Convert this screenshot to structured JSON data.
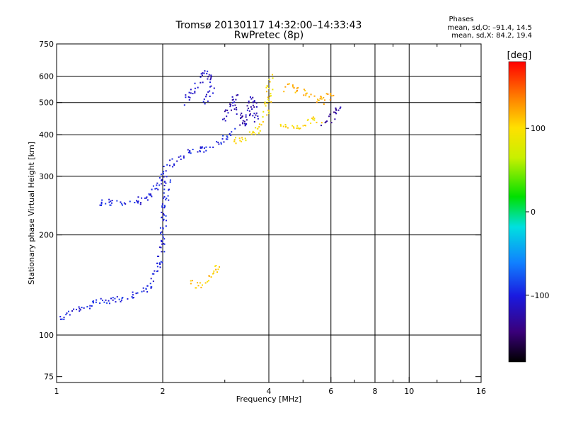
{
  "header": {
    "title_line1": "Tromsø 20130117 14:32:00–14:33:43",
    "title_line2": "RwPretec (8p)"
  },
  "stats": {
    "heading": "Phases",
    "line1": "mean, sd,O: –91.4, 14.5",
    "line2": "mean, sd,X:  84.2, 19.4"
  },
  "colorbar": {
    "unit_label": "[deg]",
    "ticks": [
      {
        "label": "100",
        "value": 100
      },
      {
        "label": "0",
        "value": 0
      },
      {
        "label": "–100",
        "value": -100
      }
    ],
    "range": [
      -180,
      180
    ]
  },
  "chart_data": {
    "type": "scatter",
    "xlabel": "Frequency [MHz]",
    "ylabel": "Stationary phase Virtual Height [km]",
    "x_scale": "log",
    "y_scale": "log",
    "xlim": [
      1,
      16
    ],
    "ylim": [
      72,
      750
    ],
    "x_ticks": [
      {
        "label": "1",
        "value": 1
      },
      {
        "label": "2",
        "value": 2
      },
      {
        "label": "4",
        "value": 4
      },
      {
        "label": "6",
        "value": 6
      },
      {
        "label": "8",
        "value": 8
      },
      {
        "label": "10",
        "value": 10
      },
      {
        "label": "16",
        "value": 16
      }
    ],
    "x_grid": [
      2,
      4,
      6,
      8,
      10
    ],
    "y_ticks": [
      {
        "label": "75",
        "value": 75
      },
      {
        "label": "100",
        "value": 100
      },
      {
        "label": "200",
        "value": 200
      },
      {
        "label": "300",
        "value": 300
      },
      {
        "label": "400",
        "value": 400
      },
      {
        "label": "500",
        "value": 500
      },
      {
        "label": "600",
        "value": 600
      },
      {
        "label": "750",
        "value": 750
      }
    ],
    "y_grid": [
      100,
      200,
      300,
      400,
      500,
      600
    ],
    "grid": true,
    "traces": [
      {
        "phase": -100,
        "points": [
          [
            1.02,
            112
          ],
          [
            1.1,
            118
          ],
          [
            1.2,
            122
          ],
          [
            1.3,
            125
          ],
          [
            1.4,
            127
          ],
          [
            1.5,
            128
          ],
          [
            1.6,
            130
          ],
          [
            1.7,
            133
          ],
          [
            1.8,
            138
          ],
          [
            1.9,
            148
          ],
          [
            1.95,
            165
          ],
          [
            2.0,
            190
          ],
          [
            2.02,
            230
          ],
          [
            2.05,
            270
          ],
          [
            2.08,
            300
          ]
        ]
      },
      {
        "phase": -100,
        "points": [
          [
            1.3,
            250
          ],
          [
            1.5,
            250
          ],
          [
            1.7,
            252
          ],
          [
            1.85,
            265
          ],
          [
            1.95,
            285
          ],
          [
            2.05,
            315
          ],
          [
            2.2,
            340
          ],
          [
            2.4,
            355
          ],
          [
            2.6,
            362
          ],
          [
            2.8,
            372
          ],
          [
            3.0,
            390
          ],
          [
            3.2,
            410
          ]
        ]
      },
      {
        "phase": -110,
        "points": [
          [
            2.3,
            500
          ],
          [
            2.4,
            530
          ],
          [
            2.5,
            560
          ],
          [
            2.6,
            600
          ],
          [
            2.7,
            620
          ],
          [
            2.75,
            560
          ],
          [
            2.65,
            500
          ]
        ]
      },
      {
        "phase": -120,
        "points": [
          [
            3.0,
            440
          ],
          [
            3.1,
            480
          ],
          [
            3.2,
            520
          ],
          [
            3.3,
            460
          ],
          [
            3.4,
            420
          ],
          [
            3.5,
            470
          ],
          [
            3.6,
            520
          ],
          [
            3.7,
            440
          ]
        ]
      },
      {
        "phase": 100,
        "points": [
          [
            3.1,
            380
          ],
          [
            3.3,
            385
          ],
          [
            3.5,
            395
          ],
          [
            3.7,
            410
          ],
          [
            3.9,
            450
          ],
          [
            4.0,
            520
          ],
          [
            4.05,
            600
          ]
        ]
      },
      {
        "phase": 110,
        "points": [
          [
            2.4,
            145
          ],
          [
            2.5,
            140
          ],
          [
            2.6,
            142
          ],
          [
            2.7,
            148
          ],
          [
            2.8,
            155
          ],
          [
            2.9,
            162
          ]
        ]
      },
      {
        "phase": 100,
        "points": [
          [
            4.3,
            420
          ],
          [
            4.6,
            420
          ],
          [
            5.0,
            430
          ],
          [
            5.3,
            445
          ],
          [
            5.6,
            440
          ]
        ]
      },
      {
        "phase": -130,
        "points": [
          [
            5.7,
            430
          ],
          [
            5.9,
            440
          ],
          [
            6.2,
            470
          ],
          [
            6.5,
            475
          ]
        ]
      },
      {
        "phase": 120,
        "points": [
          [
            4.4,
            540
          ],
          [
            4.5,
            560
          ],
          [
            5.9,
            500
          ],
          [
            6.0,
            540
          ]
        ]
      }
    ]
  }
}
